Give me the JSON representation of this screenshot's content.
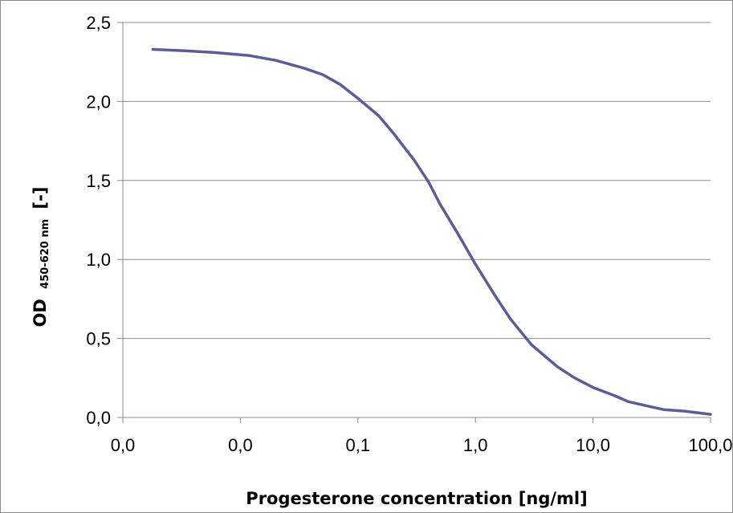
{
  "chart_data": {
    "type": "line",
    "title": "",
    "xlabel": "Progesterone concentration [ng/ml]",
    "ylabel": {
      "main": "OD",
      "subscript": "450-620 nm",
      "suffix": "[-]"
    },
    "x_scale": "log",
    "xlim": [
      0.001,
      100
    ],
    "ylim": [
      0,
      2.5
    ],
    "grid": {
      "x": false,
      "y": true
    },
    "legend": "none",
    "x_ticks": [
      {
        "value": 0.001,
        "label": "0,0"
      },
      {
        "value": 0.01,
        "label": "0,0"
      },
      {
        "value": 0.1,
        "label": "0,1"
      },
      {
        "value": 1,
        "label": "1,0"
      },
      {
        "value": 10,
        "label": "10,0"
      },
      {
        "value": 100,
        "label": "100,0"
      }
    ],
    "y_ticks": [
      {
        "value": 0,
        "label": "0,0"
      },
      {
        "value": 0.5,
        "label": "0,5"
      },
      {
        "value": 1,
        "label": "1,0"
      },
      {
        "value": 1.5,
        "label": "1,5"
      },
      {
        "value": 2,
        "label": "2,0"
      },
      {
        "value": 2.5,
        "label": "2,5"
      }
    ],
    "series": [
      {
        "color": "#5c5c99",
        "x": [
          0.0018,
          0.0035,
          0.006,
          0.012,
          0.02,
          0.035,
          0.05,
          0.07,
          0.1,
          0.15,
          0.2,
          0.3,
          0.4,
          0.5,
          0.7,
          1.0,
          1.5,
          2.0,
          3.0,
          5.0,
          7.0,
          10,
          15,
          20,
          30,
          40,
          60,
          100
        ],
        "y": [
          2.33,
          2.32,
          2.31,
          2.29,
          2.26,
          2.21,
          2.17,
          2.11,
          2.02,
          1.91,
          1.8,
          1.63,
          1.49,
          1.35,
          1.17,
          0.97,
          0.76,
          0.62,
          0.46,
          0.32,
          0.25,
          0.19,
          0.14,
          0.1,
          0.07,
          0.05,
          0.04,
          0.02
        ]
      }
    ]
  }
}
